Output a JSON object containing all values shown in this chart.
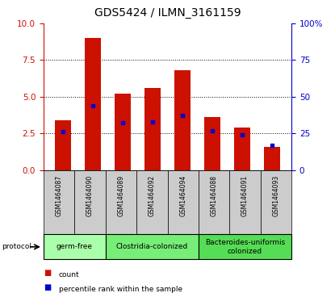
{
  "title": "GDS5424 / ILMN_3161159",
  "samples": [
    "GSM1464087",
    "GSM1464090",
    "GSM1464089",
    "GSM1464092",
    "GSM1464094",
    "GSM1464088",
    "GSM1464091",
    "GSM1464093"
  ],
  "count_values": [
    3.4,
    9.0,
    5.2,
    5.6,
    6.8,
    3.6,
    2.9,
    1.6
  ],
  "percentile_values": [
    26,
    44,
    32,
    33,
    37,
    27,
    24,
    17
  ],
  "left_ylim": [
    0,
    10
  ],
  "right_ylim": [
    0,
    100
  ],
  "left_yticks": [
    0,
    2.5,
    5,
    7.5,
    10
  ],
  "right_yticks": [
    0,
    25,
    50,
    75,
    100
  ],
  "bar_color": "#cc1100",
  "percentile_color": "#0000cc",
  "bar_width": 0.55,
  "groups": [
    {
      "label": "germ-free",
      "span": [
        0,
        1
      ],
      "color": "#aaffaa"
    },
    {
      "label": "Clostridia-colonized",
      "span": [
        2,
        4
      ],
      "color": "#77ee77"
    },
    {
      "label": "Bacteroides-uniformis\ncolonized",
      "span": [
        5,
        7
      ],
      "color": "#55dd55"
    }
  ],
  "protocol_label": "protocol",
  "legend_count_label": "count",
  "legend_percentile_label": "percentile rank within the sample",
  "tick_bg": "#cccccc",
  "title_fontsize": 10,
  "label_fontsize": 6,
  "group_fontsize": 6.5
}
